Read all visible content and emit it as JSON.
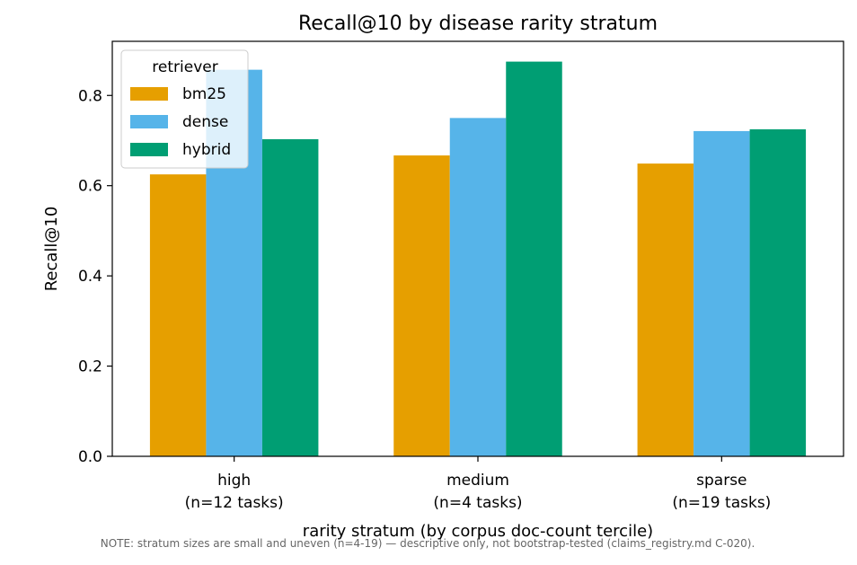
{
  "chart_data": {
    "type": "bar",
    "title": "Recall@10 by disease rarity stratum",
    "xlabel": "rarity stratum (by corpus doc-count tercile)",
    "ylabel": "Recall@10",
    "categories": [
      [
        "high",
        "(n=12 tasks)"
      ],
      [
        "medium",
        "(n=4 tasks)"
      ],
      [
        "sparse",
        "(n=19 tasks)"
      ]
    ],
    "series": [
      {
        "name": "bm25",
        "color": "#E69F00",
        "values": [
          0.625,
          0.667,
          0.649
        ]
      },
      {
        "name": "dense",
        "color": "#56B4E9",
        "values": [
          0.857,
          0.75,
          0.721
        ]
      },
      {
        "name": "hybrid",
        "color": "#009E73",
        "values": [
          0.703,
          0.875,
          0.725
        ]
      }
    ],
    "ylim": [
      0,
      0.92
    ],
    "yticks": [
      0.0,
      0.2,
      0.4,
      0.6,
      0.8
    ],
    "ytick_labels": [
      "0.0",
      "0.2",
      "0.4",
      "0.6",
      "0.8"
    ],
    "legend": {
      "title": "retriever",
      "placement": "top-left"
    },
    "grid": false,
    "footnote": "NOTE: stratum sizes are small and uneven (n=4-19) — descriptive only, not bootstrap-tested (claims_registry.md C-020)."
  }
}
